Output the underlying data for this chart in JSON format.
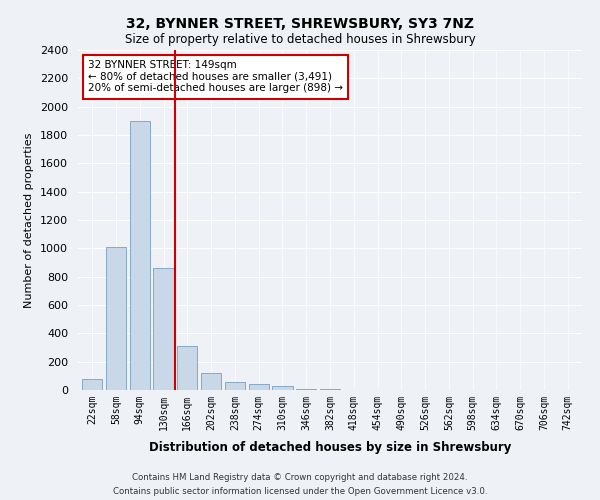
{
  "title": "32, BYNNER STREET, SHREWSBURY, SY3 7NZ",
  "subtitle": "Size of property relative to detached houses in Shrewsbury",
  "xlabel": "Distribution of detached houses by size in Shrewsbury",
  "ylabel": "Number of detached properties",
  "bar_color": "#c8d8e8",
  "bar_edge_color": "#7a9fbe",
  "categories": [
    "22sqm",
    "58sqm",
    "94sqm",
    "130sqm",
    "166sqm",
    "202sqm",
    "238sqm",
    "274sqm",
    "310sqm",
    "346sqm",
    "382sqm",
    "418sqm",
    "454sqm",
    "490sqm",
    "526sqm",
    "562sqm",
    "598sqm",
    "634sqm",
    "670sqm",
    "706sqm",
    "742sqm"
  ],
  "values": [
    80,
    1010,
    1900,
    860,
    310,
    120,
    55,
    40,
    25,
    10,
    10,
    0,
    0,
    0,
    0,
    0,
    0,
    0,
    0,
    0,
    0
  ],
  "ylim": [
    0,
    2400
  ],
  "yticks": [
    0,
    200,
    400,
    600,
    800,
    1000,
    1200,
    1400,
    1600,
    1800,
    2000,
    2200,
    2400
  ],
  "vline_x": 3.5,
  "vline_color": "#cc0000",
  "annotation_text": "32 BYNNER STREET: 149sqm\n← 80% of detached houses are smaller (3,491)\n20% of semi-detached houses are larger (898) →",
  "annotation_box_color": "#ffffff",
  "annotation_box_edge": "#cc0000",
  "footer_line1": "Contains HM Land Registry data © Crown copyright and database right 2024.",
  "footer_line2": "Contains public sector information licensed under the Open Government Licence v3.0.",
  "background_color": "#eef2f7",
  "grid_color": "#ffffff"
}
